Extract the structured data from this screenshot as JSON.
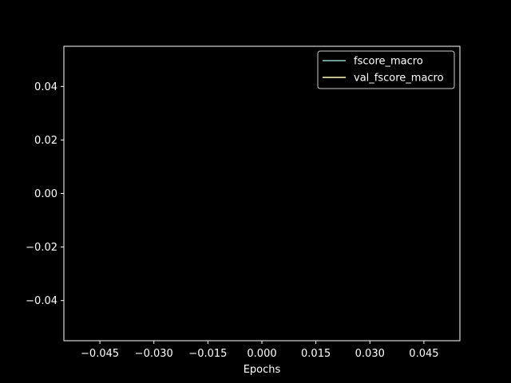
{
  "colors": {
    "background": "#000000",
    "axes": "#ffffff",
    "fscore_macro": "#8dd3c7",
    "val_fscore_macro": "#ffffb3"
  },
  "chart_data": {
    "type": "line",
    "title": "",
    "xlabel": "Epochs",
    "ylabel": "",
    "xlim": [
      -0.055,
      0.055
    ],
    "ylim": [
      -0.055,
      0.055
    ],
    "xticks": [
      -0.045,
      -0.03,
      -0.015,
      0.0,
      0.015,
      0.03,
      0.045
    ],
    "xtick_labels": [
      "−0.045",
      "−0.030",
      "−0.015",
      "0.000",
      "0.015",
      "0.030",
      "0.045"
    ],
    "yticks": [
      -0.04,
      -0.02,
      0.0,
      0.02,
      0.04
    ],
    "ytick_labels": [
      "−0.04",
      "−0.02",
      "0.00",
      "0.02",
      "0.04"
    ],
    "grid": false,
    "legend_position": "top-right",
    "series": [
      {
        "name": "fscore_macro",
        "color": "#8dd3c7",
        "x": [],
        "y": []
      },
      {
        "name": "val_fscore_macro",
        "color": "#ffffb3",
        "x": [],
        "y": []
      }
    ]
  }
}
